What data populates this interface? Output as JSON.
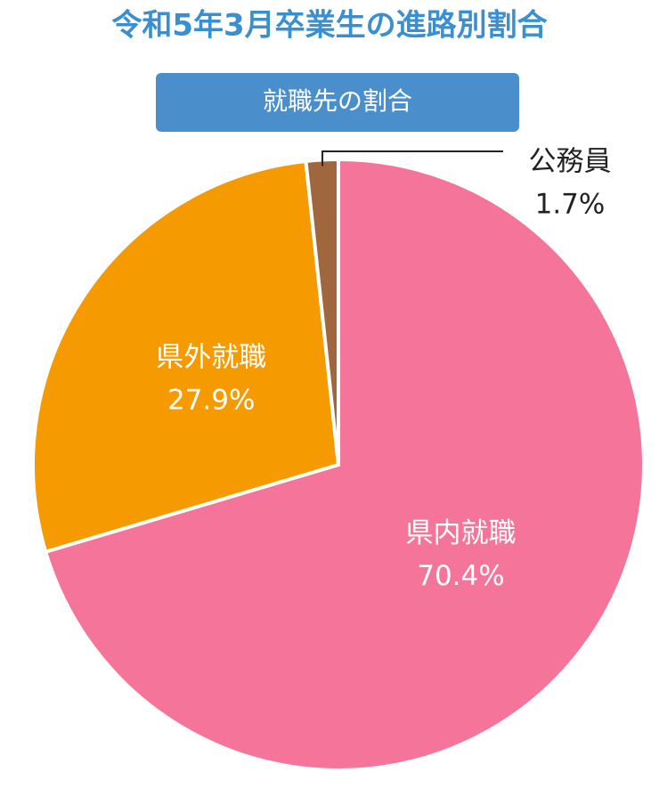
{
  "chart_data": {
    "type": "pie",
    "title": "令和5年3月卒業生の進路別割合",
    "subtitle": "就職先の割合",
    "categories": [
      "県内就職",
      "県外就職",
      "公務員"
    ],
    "values": [
      70.4,
      27.9,
      1.7
    ],
    "value_labels": [
      "70.4%",
      "27.9%",
      "1.7%"
    ],
    "colors": [
      "#f47599",
      "#f59a00",
      "#a0673e"
    ]
  }
}
